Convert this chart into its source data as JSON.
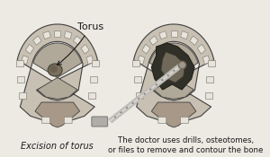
{
  "bg_color": "#ede9e3",
  "title_left": "Torus",
  "label_left": "Excision of torus",
  "label_right_line1": "The doctor uses drills, osteotomes,",
  "label_right_line2": "or files to remove and contour the bone",
  "text_color": "#1a1a1a",
  "font_size_label": 7.0,
  "font_size_title": 8.0,
  "outer_jaw_color": "#c8bfb0",
  "palate_color": "#b8afa0",
  "teeth_color": "#e0dcd5",
  "teeth_edge": "#888880",
  "torus_color": "#7a7068",
  "torus_edge": "#504840",
  "throat_color": "#a09080",
  "lip_color": "#d8d0c4",
  "dark_surgery_color": "#3a3028",
  "mid_surgery_color": "#6a5e50",
  "outline_color": "#404040",
  "tool_color_light": "#d0ccc8",
  "tool_color_dark": "#888480"
}
